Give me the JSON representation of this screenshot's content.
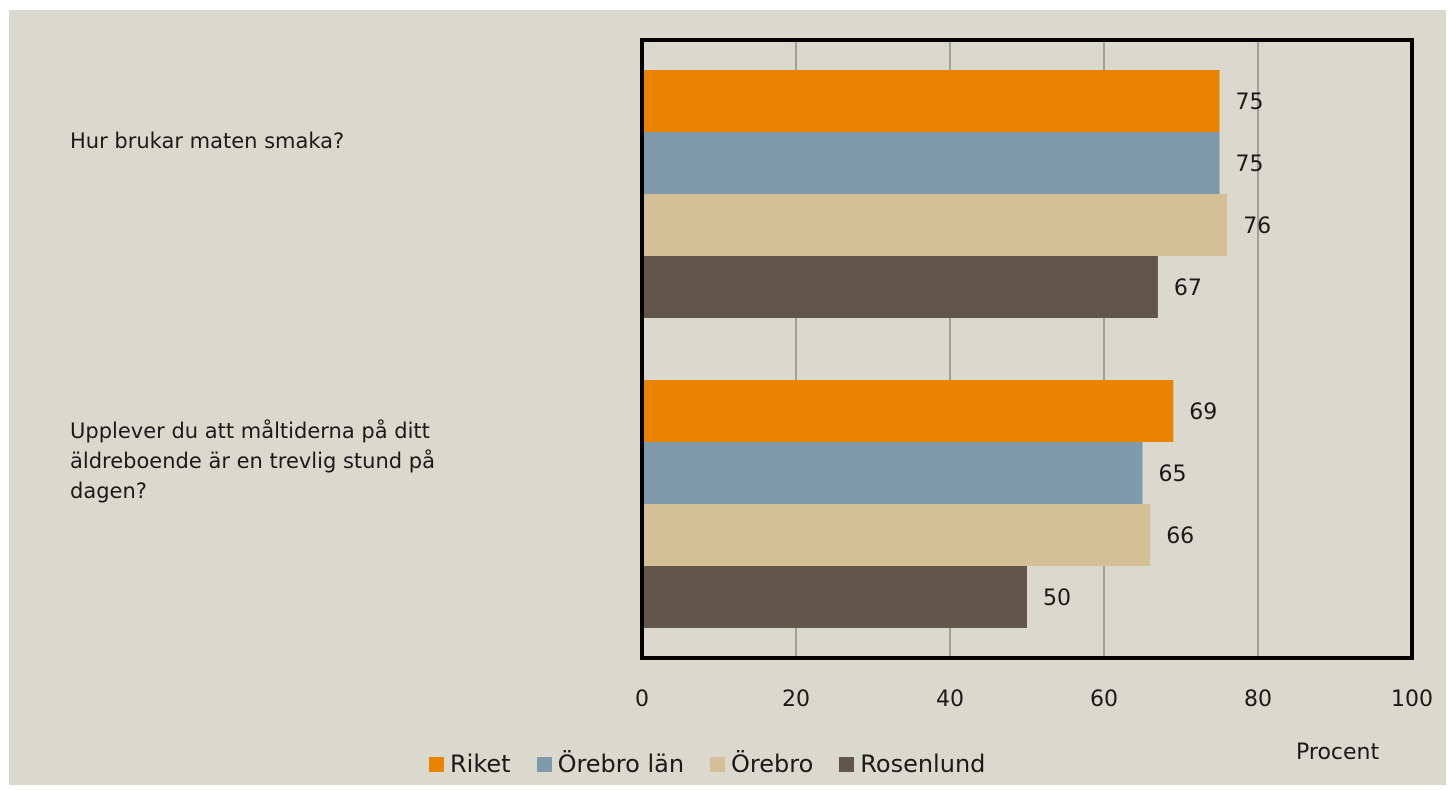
{
  "chart_data": {
    "type": "bar",
    "orientation": "horizontal",
    "categories": [
      "Hur brukar maten smaka?",
      "Upplever du att måltiderna på ditt\näldreboende är en trevlig stund på\ndagen?"
    ],
    "series": [
      {
        "name": "Riket",
        "color": "#e98300",
        "values": [
          75,
          69
        ]
      },
      {
        "name": "Örebro län",
        "color": "#7e9aab",
        "values": [
          75,
          65
        ]
      },
      {
        "name": "Örebro",
        "color": "#d4bf96",
        "values": [
          76,
          66
        ]
      },
      {
        "name": "Rosenlund",
        "color": "#62554a",
        "values": [
          67,
          50
        ]
      }
    ],
    "xlim": [
      0,
      100
    ],
    "xticks": [
      0,
      20,
      40,
      60,
      80,
      100
    ],
    "xlabel": "Procent",
    "grid": true,
    "data_labels": true,
    "legend_position": "bottom"
  }
}
